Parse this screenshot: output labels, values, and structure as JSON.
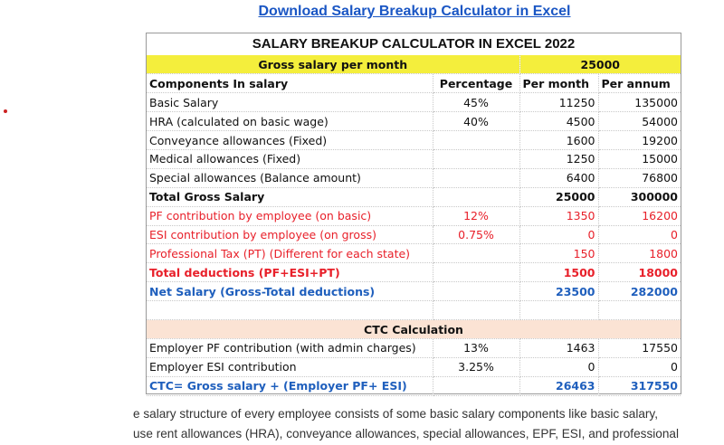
{
  "link": {
    "text": "Download Salary Breakup Calculator in Excel"
  },
  "sheet": {
    "title": "SALARY BREAKUP CALCULATOR IN EXCEL 2022",
    "gross": {
      "label": "Gross salary per month",
      "value": "25000"
    },
    "headers": {
      "component": "Components In salary",
      "percentage": "Percentage",
      "per_month": "Per month",
      "per_annum": "Per annum"
    },
    "rows": [
      {
        "label": "Basic Salary",
        "pct": "45%",
        "month": "11250",
        "annum": "135000"
      },
      {
        "label": "HRA (calculated on basic wage)",
        "pct": "40%",
        "month": "4500",
        "annum": "54000"
      },
      {
        "label": "Conveyance allowances (Fixed)",
        "pct": "",
        "month": "1600",
        "annum": "19200"
      },
      {
        "label": "Medical allowances (Fixed)",
        "pct": "",
        "month": "1250",
        "annum": "15000"
      },
      {
        "label": "Special allowances (Balance amount)",
        "pct": "",
        "month": "6400",
        "annum": "76800"
      },
      {
        "label": "Total Gross Salary",
        "pct": "",
        "month": "25000",
        "annum": "300000"
      },
      {
        "label": "PF contribution by employee (on basic)",
        "pct": "12%",
        "month": "1350",
        "annum": "16200"
      },
      {
        "label": "ESI contribution by employee (on gross)",
        "pct": "0.75%",
        "month": "0",
        "annum": "0"
      },
      {
        "label": "Professional Tax (PT) (Different for each state)",
        "pct": "",
        "month": "150",
        "annum": "1800"
      },
      {
        "label": "Total deductions (PF+ESI+PT)",
        "pct": "",
        "month": "1500",
        "annum": "18000"
      },
      {
        "label": "Net Salary (Gross-Total deductions)",
        "pct": "",
        "month": "23500",
        "annum": "282000"
      }
    ],
    "ctc_title": "CTC Calculation",
    "ctc_rows": [
      {
        "label": "Employer PF contribution (with admin charges)",
        "pct": "13%",
        "month": "1463",
        "annum": "17550"
      },
      {
        "label": "Employer ESI contribution",
        "pct": "3.25%",
        "month": "0",
        "annum": "0"
      },
      {
        "label": "CTC= Gross salary + (Employer PF+ ESI)",
        "pct": "",
        "month": "26463",
        "annum": "317550"
      }
    ]
  },
  "paragraph": {
    "line1": "e salary structure of every employee consists of some basic salary components like basic salary,",
    "line2": "use rent allowances (HRA), conveyance allowances, special allowances, EPF, ESI, and professional"
  },
  "colors": {
    "link": "#1a56c4",
    "red": "#e8202a",
    "blue": "#1f5fbd",
    "yellow": "#f4ee3c",
    "peach": "#fbe3d4"
  }
}
